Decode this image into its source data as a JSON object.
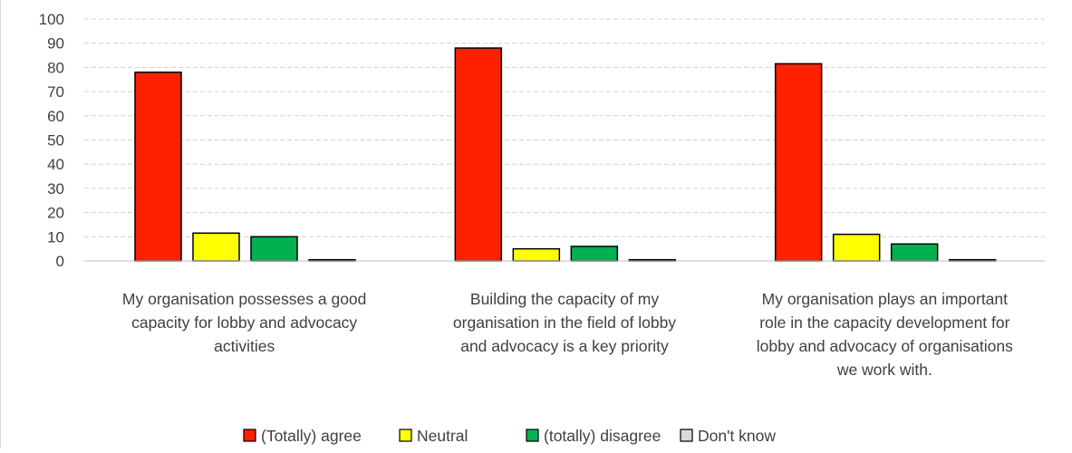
{
  "chart_data": {
    "type": "bar",
    "title": "",
    "xlabel": "",
    "ylabel": "",
    "ylim": [
      0,
      100
    ],
    "yticks": [
      0,
      10,
      20,
      30,
      40,
      50,
      60,
      70,
      80,
      90,
      100
    ],
    "grid": true,
    "legend_position": "bottom",
    "categories": [
      [
        "My organisation possesses a good",
        "capacity for lobby and advocacy",
        "activities"
      ],
      [
        "Building the capacity of my",
        "organisation in the field of lobby",
        "and advocacy is a key priority"
      ],
      [
        "My organisation plays an important",
        "role in the capacity development for",
        "lobby and advocacy of organisations",
        "we work with."
      ]
    ],
    "series": [
      {
        "name": "(Totally) agree",
        "color": "#FF2000",
        "values": [
          78,
          88,
          81.5
        ]
      },
      {
        "name": "Neutral",
        "color": "#FFFF00",
        "values": [
          11.5,
          5,
          11
        ]
      },
      {
        "name": "(totally) disagree",
        "color": "#00B050",
        "values": [
          10,
          6,
          7
        ]
      },
      {
        "name": "Don't know",
        "color": "#D9D9D9",
        "values": [
          0.5,
          0.5,
          0.5
        ]
      }
    ]
  }
}
